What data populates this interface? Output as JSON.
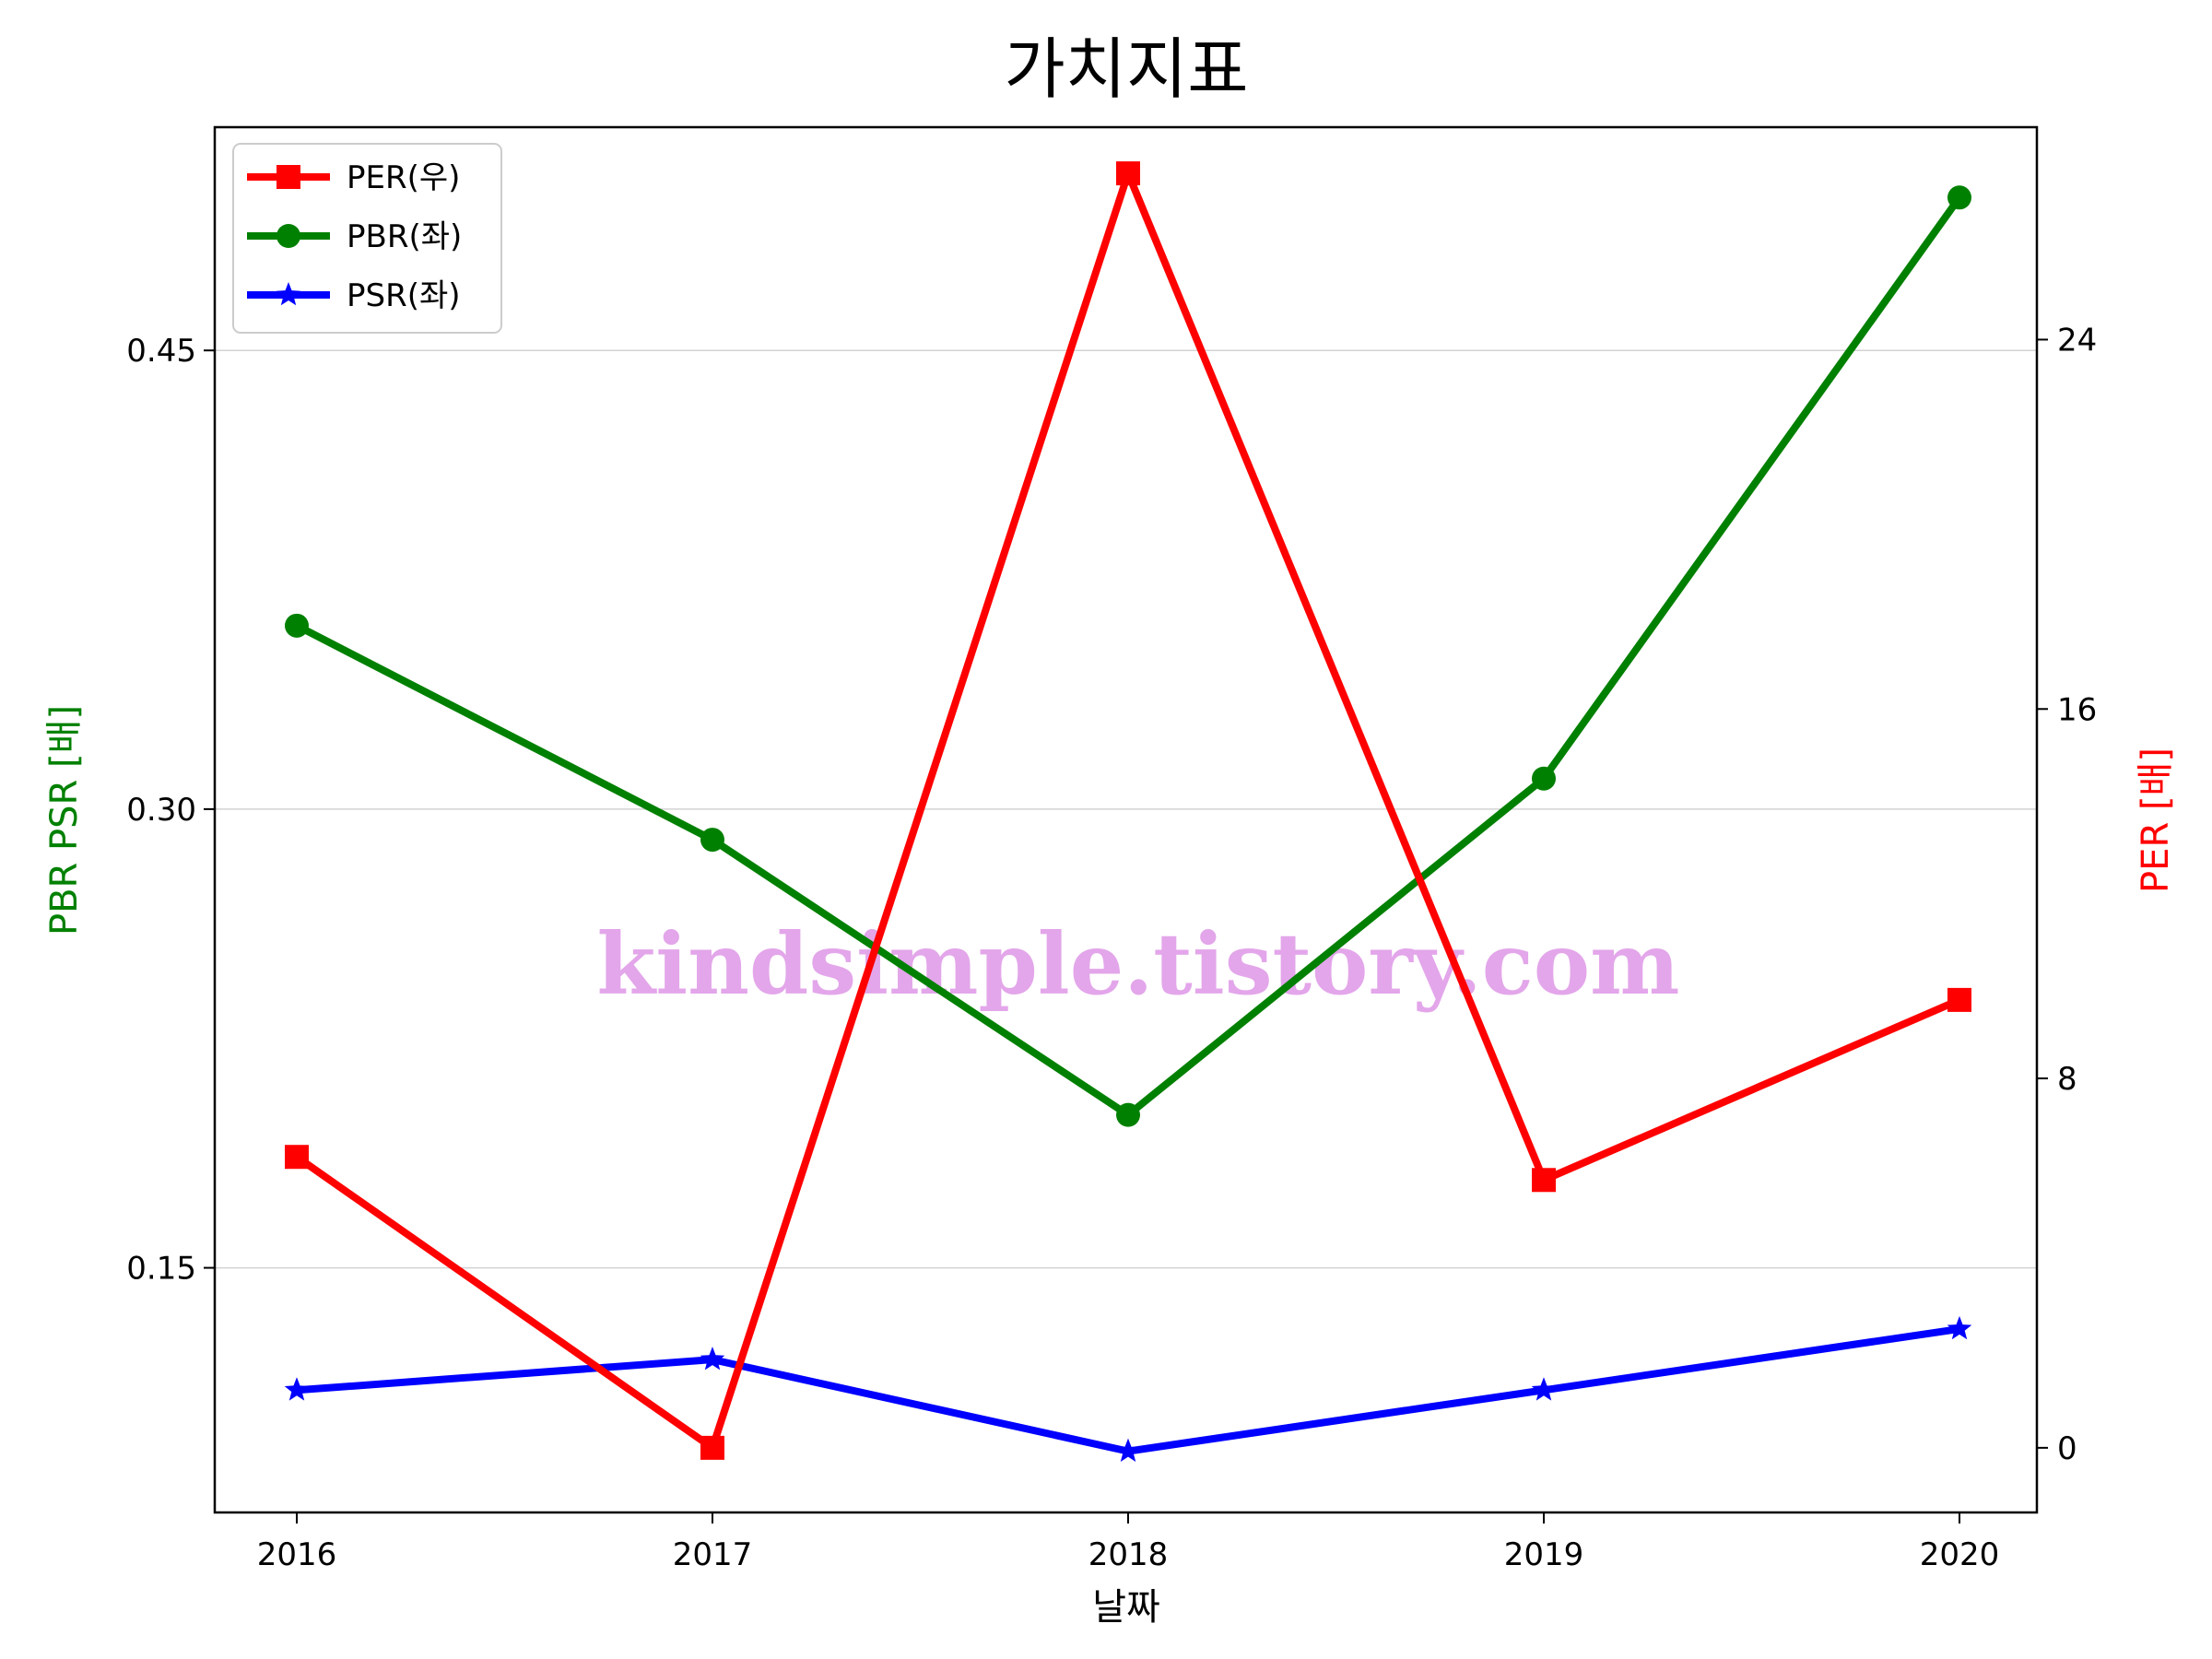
{
  "chart_data": {
    "type": "line",
    "title": "가치지표",
    "xlabel": "날짜",
    "ylabel_left": "PBR PSR [배]",
    "ylabel_right": "PER [배]",
    "categories": [
      "2016",
      "2017",
      "2018",
      "2019",
      "2020"
    ],
    "left_axis": {
      "ylim": [
        0.07,
        0.523
      ],
      "ticks": [
        "0.15",
        "0.30",
        "0.45"
      ],
      "tick_values": [
        0.15,
        0.3,
        0.45
      ]
    },
    "right_axis": {
      "ylim": [
        -1.4,
        28.6
      ],
      "ticks": [
        "0",
        "8",
        "16",
        "24"
      ],
      "tick_values": [
        0,
        8,
        16,
        24
      ]
    },
    "grid": "horizontal",
    "legend_position": "upper-left",
    "series": [
      {
        "name": "PER(우)",
        "axis": "right",
        "marker": "square",
        "color": "#ff0000",
        "values": [
          6.3,
          0.0,
          27.6,
          5.8,
          9.7
        ]
      },
      {
        "name": "PBR(좌)",
        "axis": "left",
        "marker": "circle",
        "color": "#008000",
        "values": [
          0.36,
          0.29,
          0.2,
          0.31,
          0.5
        ]
      },
      {
        "name": "PSR(좌)",
        "axis": "left",
        "marker": "star",
        "color": "#0000ff",
        "values": [
          0.11,
          0.12,
          0.09,
          0.11,
          0.13
        ]
      }
    ],
    "watermark": "kindsimple.tistory.com"
  }
}
